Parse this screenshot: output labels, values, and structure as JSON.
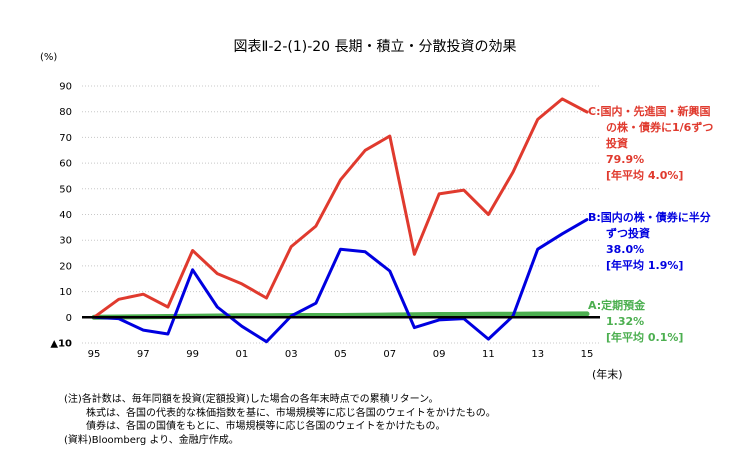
{
  "chart_data": {
    "type": "line",
    "title": "図表Ⅱ-2-(1)-20 長期・積立・分散投資の効果",
    "ylabel": "(%)",
    "xlabel": "(年末)",
    "x": [
      1995,
      1996,
      1997,
      1998,
      1999,
      2000,
      2001,
      2002,
      2003,
      2004,
      2005,
      2006,
      2007,
      2008,
      2009,
      2010,
      2011,
      2012,
      2013,
      2014,
      2015
    ],
    "x_tick_labels": [
      "95",
      "97",
      "99",
      "01",
      "03",
      "05",
      "07",
      "09",
      "11",
      "13",
      "15"
    ],
    "x_tick_years": [
      1995,
      1997,
      1999,
      2001,
      2003,
      2005,
      2007,
      2009,
      2011,
      2013,
      2015
    ],
    "ylim": [
      -10,
      90
    ],
    "y_ticks": [
      -10,
      0,
      10,
      20,
      30,
      40,
      50,
      60,
      70,
      80,
      90
    ],
    "y_tick_labels": [
      "▲10",
      "0",
      "10",
      "20",
      "30",
      "40",
      "50",
      "60",
      "70",
      "80",
      "90"
    ],
    "grid": true,
    "series": [
      {
        "name": "C:国内・先進国・新興国の株・債券に1/6ずつ投資",
        "color": "#e03a2e",
        "values": [
          0,
          7,
          9,
          4,
          26,
          17,
          13,
          7.5,
          27.5,
          35.5,
          53.5,
          65,
          70.5,
          24.5,
          48,
          49.5,
          40,
          56.5,
          77,
          85,
          79.9
        ]
      },
      {
        "name": "B:国内の株・債券に半分ずつ投資",
        "color": "#0000e0",
        "values": [
          0,
          -0.5,
          -5,
          -6.5,
          18.5,
          4,
          -3.5,
          -9.5,
          0.5,
          5.5,
          26.5,
          25.5,
          18,
          -4,
          -1,
          -0.5,
          -8.5,
          0.5,
          26.5,
          32.5,
          38
        ]
      },
      {
        "name": "A:定期預金",
        "color": "#4caf50",
        "values": [
          0,
          0.1,
          0.2,
          0.3,
          0.4,
          0.5,
          0.6,
          0.6,
          0.7,
          0.7,
          0.7,
          0.8,
          0.9,
          1.0,
          1.1,
          1.1,
          1.2,
          1.2,
          1.3,
          1.3,
          1.32
        ]
      }
    ]
  },
  "annotations": {
    "c_lines": [
      "C:国内・先進国・新興国",
      "の株・債券に1/6ずつ",
      "投資"
    ],
    "c_value": "79.9%",
    "c_avg": "[年平均 4.0%]",
    "b_lines": [
      "B:国内の株・債券に半分",
      "ずつ投資"
    ],
    "b_value": "38.0%",
    "b_avg": "[年平均 1.9%]",
    "a_lines": [
      "A:定期預金"
    ],
    "a_value": "1.32%",
    "a_avg": "[年平均 0.1%]"
  },
  "notes": [
    "(注)各計数は、毎年同額を投資(定額投資)した場合の各年末時点での累積リターン。",
    "株式は、各国の代表的な株価指数を基に、市場規模等に応じ各国のウェイトをかけたもの。",
    "債券は、各国の国債をもとに、市場規模等に応じ各国のウェイトをかけたもの。",
    "(資料)Bloomberg より、金融庁作成。"
  ]
}
